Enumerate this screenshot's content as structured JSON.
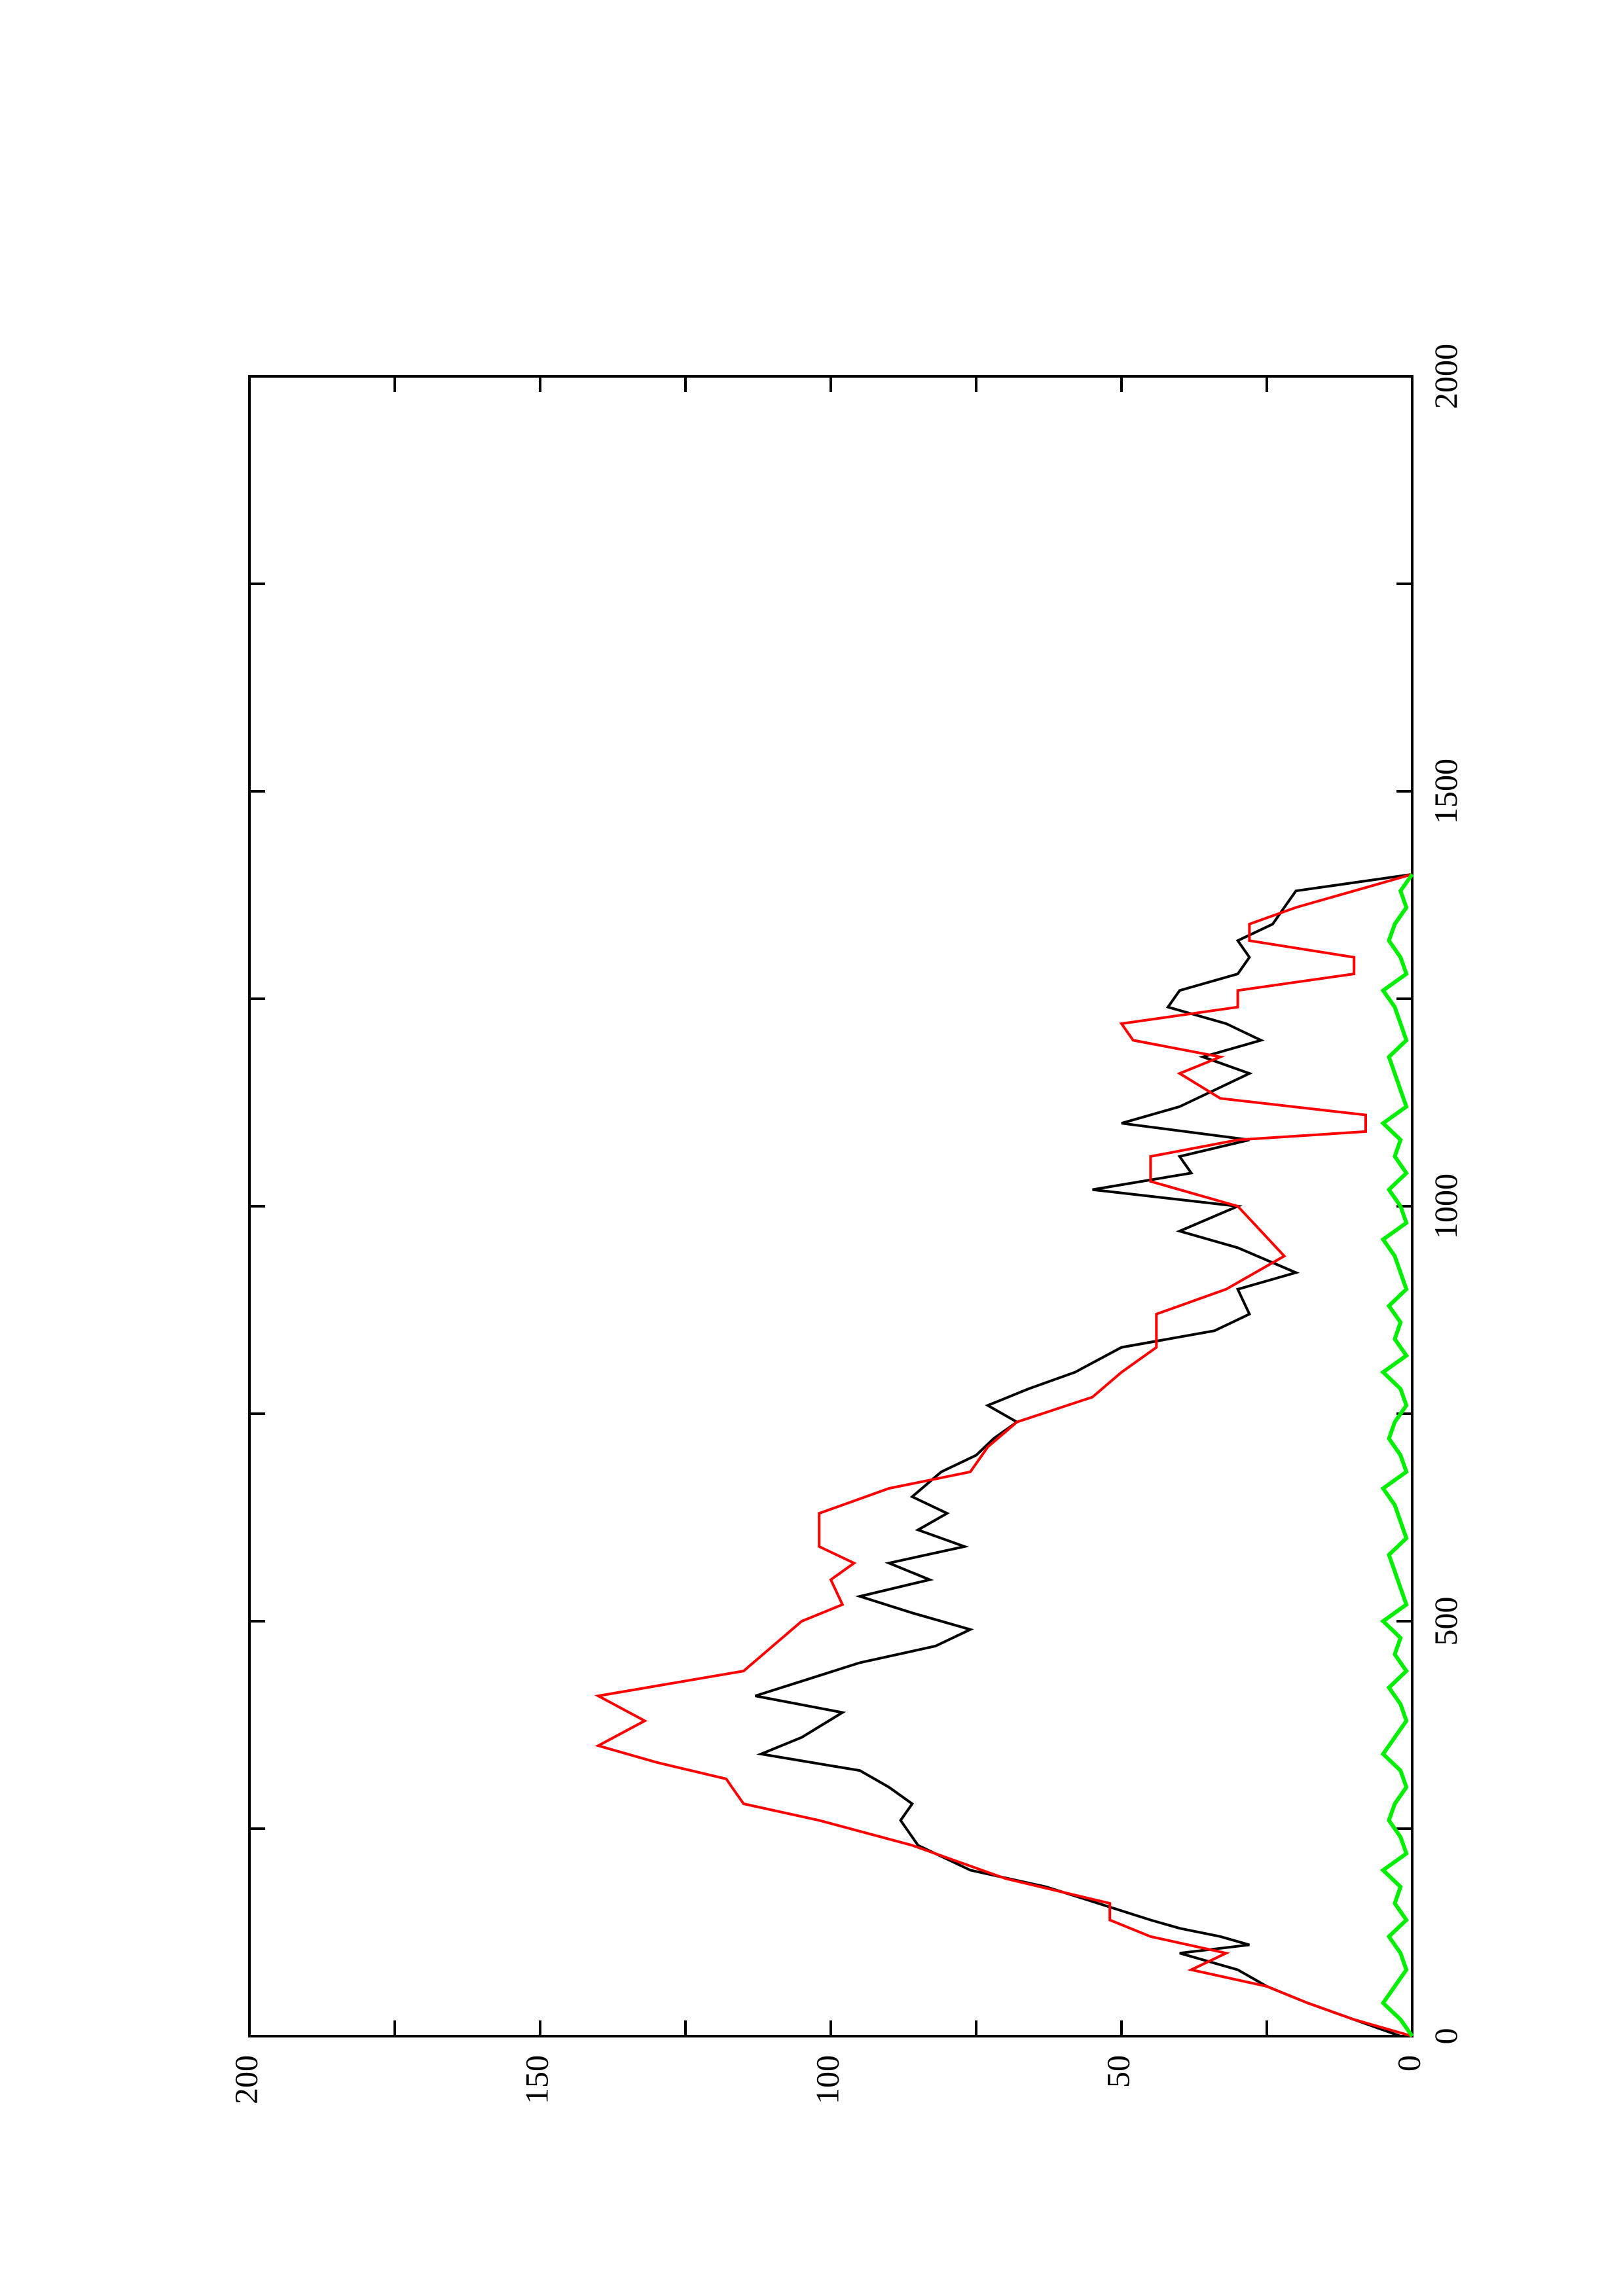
{
  "chart_data": {
    "type": "line",
    "orientation": "rotated-90-ccw",
    "title": "",
    "xlabel": "",
    "ylabel": "",
    "xlim": [
      0,
      2000
    ],
    "ylim": [
      0,
      200
    ],
    "x_ticks": [
      "0",
      "500",
      "1000",
      "1500",
      "2000"
    ],
    "y_ticks": [
      "0",
      "50",
      "100",
      "150",
      "200"
    ],
    "grid": false,
    "legend": "none",
    "series": [
      {
        "color": "#000000",
        "x": [
          0,
          20,
          40,
          60,
          80,
          100,
          110,
          120,
          130,
          140,
          160,
          180,
          200,
          230,
          260,
          280,
          300,
          320,
          340,
          360,
          390,
          410,
          430,
          450,
          470,
          490,
          510,
          530,
          550,
          570,
          590,
          610,
          630,
          650,
          680,
          700,
          720,
          740,
          760,
          780,
          800,
          830,
          850,
          870,
          900,
          920,
          950,
          970,
          1000,
          1020,
          1040,
          1060,
          1080,
          1100,
          1120,
          1140,
          1160,
          1180,
          1200,
          1220,
          1240,
          1260,
          1280,
          1300,
          1320,
          1340,
          1360,
          1380,
          1400
        ],
        "values": [
          2,
          10,
          18,
          25,
          30,
          40,
          28,
          33,
          40,
          45,
          54,
          63,
          76,
          85,
          88,
          86,
          90,
          95,
          112,
          105,
          98,
          113,
          104,
          95,
          82,
          76,
          86,
          95,
          83,
          90,
          77,
          85,
          80,
          86,
          81,
          75,
          72,
          68,
          73,
          66,
          58,
          50,
          34,
          28,
          30,
          20,
          30,
          40,
          30,
          55,
          38,
          40,
          28,
          50,
          40,
          34,
          28,
          36,
          26,
          32,
          42,
          40,
          30,
          28,
          30,
          24,
          22,
          20,
          0
        ]
      },
      {
        "color": "#ff0000",
        "x": [
          0,
          20,
          40,
          60,
          80,
          100,
          120,
          140,
          160,
          190,
          230,
          260,
          280,
          300,
          310,
          330,
          350,
          380,
          410,
          440,
          470,
          500,
          520,
          550,
          570,
          590,
          630,
          660,
          680,
          710,
          740,
          770,
          800,
          830,
          870,
          900,
          940,
          970,
          1000,
          1030,
          1060,
          1080,
          1090,
          1110,
          1130,
          1160,
          1180,
          1200,
          1220,
          1240,
          1260,
          1280,
          1300,
          1320,
          1340,
          1360,
          1380,
          1400
        ],
        "values": [
          0,
          10,
          18,
          25,
          38,
          32,
          45,
          52,
          52,
          70,
          86,
          102,
          115,
          117,
          118,
          130,
          140,
          132,
          140,
          115,
          110,
          105,
          98,
          100,
          96,
          102,
          102,
          90,
          76,
          73,
          68,
          55,
          50,
          44,
          44,
          32,
          22,
          26,
          30,
          45,
          45,
          30,
          8,
          8,
          33,
          40,
          33,
          48,
          50,
          30,
          30,
          10,
          10,
          28,
          28,
          20,
          10,
          0
        ]
      },
      {
        "color": "#00ee00",
        "x": [
          0,
          20,
          40,
          60,
          80,
          100,
          120,
          140,
          160,
          180,
          200,
          220,
          240,
          260,
          280,
          300,
          320,
          340,
          360,
          380,
          400,
          420,
          440,
          460,
          480,
          500,
          520,
          540,
          560,
          580,
          600,
          620,
          640,
          660,
          680,
          700,
          720,
          740,
          760,
          780,
          800,
          820,
          840,
          860,
          880,
          900,
          920,
          940,
          960,
          980,
          1000,
          1020,
          1040,
          1060,
          1080,
          1100,
          1120,
          1140,
          1160,
          1180,
          1200,
          1220,
          1240,
          1260,
          1280,
          1300,
          1320,
          1340,
          1360,
          1380,
          1400
        ],
        "values": [
          0,
          2,
          5,
          3,
          1,
          2,
          4,
          1,
          3,
          2,
          5,
          1,
          2,
          4,
          3,
          1,
          2,
          5,
          3,
          1,
          2,
          4,
          1,
          3,
          2,
          5,
          1,
          2,
          3,
          4,
          1,
          2,
          3,
          5,
          1,
          2,
          4,
          3,
          1,
          2,
          5,
          1,
          3,
          2,
          4,
          1,
          2,
          3,
          5,
          1,
          2,
          4,
          1,
          3,
          2,
          5,
          1,
          2,
          3,
          4,
          1,
          2,
          3,
          5,
          1,
          2,
          4,
          3,
          1,
          2,
          0
        ]
      }
    ]
  }
}
